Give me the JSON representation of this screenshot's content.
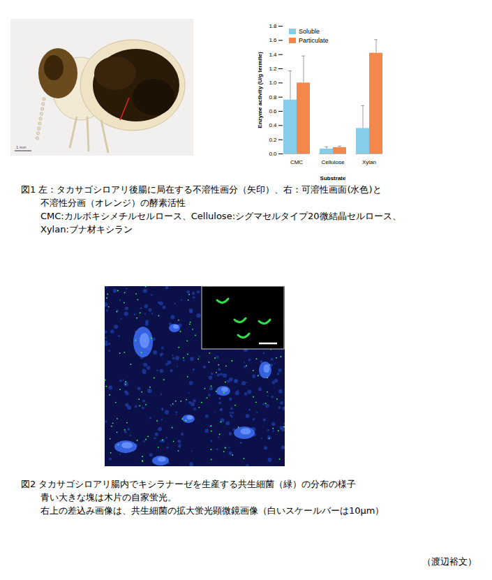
{
  "figure1": {
    "photo_scale_bar": "1 mm",
    "caption": [
      "図1 左：タカサゴシロアリ後腸に局在する不溶性画分（矢印）、右：可溶性画面(水色)と",
      "不溶性分画（オレンジ）の酵素活性",
      "CMC:カルボキシメチルセルロース、Cellulose:シグマセルタイプ20微結晶セルロース、",
      "Xylan:ブナ材キシラン"
    ]
  },
  "chart_data": {
    "type": "bar",
    "x_label": "Substrate",
    "y_label": "Enzyme activity (U/g termite)",
    "categories": [
      "CMC",
      "Cellulose",
      "Xylan"
    ],
    "series": [
      {
        "name": "Soluble",
        "color": "#86cdea",
        "values": [
          0.76,
          0.07,
          0.36
        ],
        "errors": [
          0.41,
          0.03,
          0.32
        ]
      },
      {
        "name": "Particulate",
        "color": "#f4874b",
        "values": [
          1.0,
          0.09,
          1.42
        ],
        "errors": [
          0.38,
          0.02,
          0.19
        ]
      }
    ],
    "ylim": [
      0,
      1.8
    ],
    "yticks": [
      {
        "value": 0,
        "label": "0.0"
      },
      0.2,
      0.4,
      0.6,
      0.8,
      {
        "value": 1,
        "label": "1.0"
      },
      1.2,
      1.4,
      1.6,
      1.8
    ],
    "legend": "upper left",
    "grid": false
  },
  "figure2": {
    "caption": [
      "図2 タカサゴシロアリ腸内でキシラナーゼを生産する共生細菌（緑）の分布の様子",
      "青い大きな塊は木片の自家蛍光。",
      "右上の差込み画像は、共生細菌の拡大蛍光顕微鏡画像（白いスケールバーは10μm）"
    ]
  },
  "author": "（渡辺裕文）"
}
